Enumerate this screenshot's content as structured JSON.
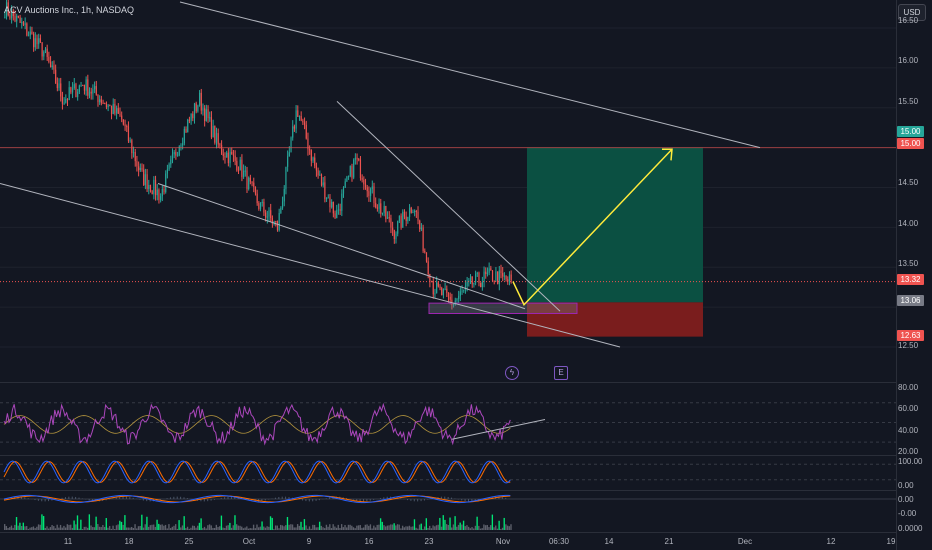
{
  "header": {
    "title": "ACV Auctions Inc., 1h, NASDAQ",
    "currency": "USD"
  },
  "colors": {
    "up": "#26a69a",
    "down": "#ef5350",
    "bright_up": "#00e676",
    "rsi": "#ab47bc",
    "trendline": "#b2b5be",
    "arrow": "#ffeb3b",
    "target_zone": "#0b5345",
    "stop_zone": "#7f1d1d",
    "accent": "#2962ff"
  },
  "price_axis": {
    "labels": [
      "16.50",
      "16.00",
      "15.50",
      "14.50",
      "14.00",
      "13.50",
      "12.50"
    ]
  },
  "price_badges": {
    "target": "15.00",
    "target_line": "15.00",
    "last": "13.32",
    "entry": "13.06",
    "stop": "12.63"
  },
  "rsi_axis": {
    "labels": [
      "80.00",
      "60.00",
      "40.00",
      "20.00"
    ]
  },
  "stoch_axis": {
    "labels": [
      "100.00",
      "0.00"
    ]
  },
  "macd_axis": {
    "labels": [
      "0.00",
      "-0.00"
    ]
  },
  "vol_axis": {
    "labels": [
      "0.0000"
    ]
  },
  "time_axis": {
    "labels": [
      "11",
      "18",
      "25",
      "Oct",
      "9",
      "16",
      "23",
      "Nov",
      "06:30",
      "14",
      "21",
      "Dec",
      "12",
      "19"
    ]
  },
  "icons": {
    "lightning": "ϟ",
    "earnings": "E"
  },
  "chart_data": {
    "type": "candlestick",
    "symbol": "ACV Auctions Inc.",
    "interval": "1h",
    "exchange": "NASDAQ",
    "ylim": [
      12.45,
      16.75
    ],
    "key_points": [
      {
        "x": "Sep 6",
        "close": 16.75
      },
      {
        "x": "Sep 8",
        "close": 16.5
      },
      {
        "x": "Sep 11",
        "close": 16.2
      },
      {
        "x": "Sep 13",
        "close": 15.6
      },
      {
        "x": "Sep 15",
        "close": 15.8
      },
      {
        "x": "Sep 18",
        "close": 15.6
      },
      {
        "x": "Sep 20",
        "close": 15.35
      },
      {
        "x": "Sep 21",
        "close": 14.65
      },
      {
        "x": "Sep 25",
        "close": 14.4
      },
      {
        "x": "Sep 27",
        "close": 15.1
      },
      {
        "x": "Sep 28",
        "close": 15.6
      },
      {
        "x": "Oct 2",
        "close": 15.0
      },
      {
        "x": "Oct 4",
        "close": 14.8
      },
      {
        "x": "Oct 6",
        "close": 14.3
      },
      {
        "x": "Oct 9",
        "close": 14.0
      },
      {
        "x": "Oct 11",
        "close": 15.5
      },
      {
        "x": "Oct 13",
        "close": 14.7
      },
      {
        "x": "Oct 16",
        "close": 14.15
      },
      {
        "x": "Oct 17",
        "close": 14.85
      },
      {
        "x": "Oct 19",
        "close": 14.35
      },
      {
        "x": "Oct 20",
        "close": 13.95
      },
      {
        "x": "Oct 23",
        "close": 14.3
      },
      {
        "x": "Oct 25",
        "close": 13.25
      },
      {
        "x": "Oct 26",
        "close": 13.05
      },
      {
        "x": "Oct 27",
        "close": 13.3
      },
      {
        "x": "Oct 30",
        "close": 13.4
      },
      {
        "x": "Oct 31",
        "close": 13.32
      }
    ],
    "last_price": 13.32,
    "long_position": {
      "entry": 13.06,
      "target": 15.0,
      "stop": 12.63
    },
    "rsi": {
      "ylim": [
        0,
        100
      ],
      "last": 53
    }
  }
}
